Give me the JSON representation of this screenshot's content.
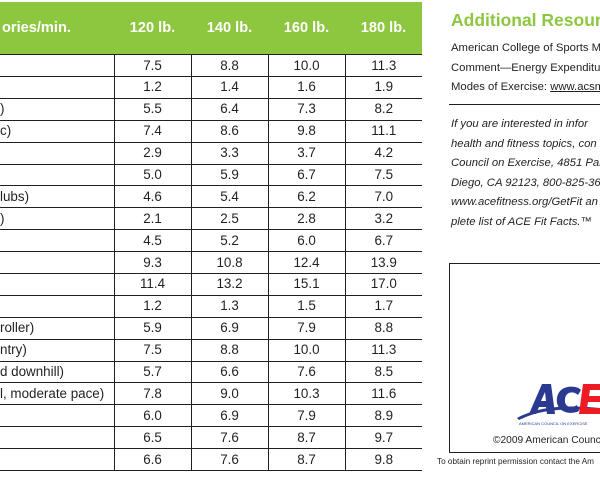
{
  "table": {
    "headers": [
      "ories/min.",
      "120 lb.",
      "140 lb.",
      "160 lb.",
      "180 lb."
    ],
    "rows": [
      {
        "activity": "",
        "values": [
          "7.5",
          "8.8",
          "10.0",
          "11.3"
        ]
      },
      {
        "activity": "",
        "values": [
          "1.2",
          "1.4",
          "1.6",
          "1.9"
        ]
      },
      {
        "activity": ")",
        "values": [
          "5.5",
          "6.4",
          "7.3",
          "8.2"
        ]
      },
      {
        "activity": "c)",
        "values": [
          "7.4",
          "8.6",
          "9.8",
          "11.1"
        ]
      },
      {
        "activity": "",
        "values": [
          "2.9",
          "3.3",
          "3.7",
          "4.2"
        ]
      },
      {
        "activity": "",
        "values": [
          "5.0",
          "5.9",
          "6.7",
          "7.5"
        ]
      },
      {
        "activity": "lubs)",
        "values": [
          "4.6",
          "5.4",
          "6.2",
          "7.0"
        ]
      },
      {
        "activity": ")",
        "values": [
          "2.1",
          "2.5",
          "2.8",
          "3.2"
        ]
      },
      {
        "activity": "",
        "values": [
          "4.5",
          "5.2",
          "6.0",
          "6.7"
        ]
      },
      {
        "activity": "",
        "values": [
          "9.3",
          "10.8",
          "12.4",
          "13.9"
        ]
      },
      {
        "activity": "",
        "values": [
          "11.4",
          "13.2",
          "15.1",
          "17.0"
        ]
      },
      {
        "activity": "",
        "values": [
          "1.2",
          "1.3",
          "1.5",
          "1.7"
        ]
      },
      {
        "activity": "roller)",
        "values": [
          "5.9",
          "6.9",
          "7.9",
          "8.8"
        ]
      },
      {
        "activity": "ntry)",
        "values": [
          "7.5",
          "8.8",
          "10.0",
          "11.3"
        ]
      },
      {
        "activity": "d downhill)",
        "values": [
          "5.7",
          "6.6",
          "7.6",
          "8.5"
        ]
      },
      {
        "activity": "l, moderate pace)",
        "values": [
          "7.8",
          "9.0",
          "10.3",
          "11.6"
        ]
      },
      {
        "activity": "",
        "values": [
          "6.0",
          "6.9",
          "7.9",
          "8.9"
        ]
      },
      {
        "activity": "",
        "values": [
          "6.5",
          "7.6",
          "8.7",
          "9.7"
        ]
      },
      {
        "activity": "",
        "values": [
          "6.6",
          "7.6",
          "8.7",
          "9.8"
        ]
      }
    ]
  },
  "resources": {
    "title": "Additional Resource",
    "line1": "American College of Sports M",
    "line2": "Comment—Energy Expenditu",
    "line3_prefix": "Modes of Exercise: ",
    "line3_link": "www.acsm"
  },
  "info": {
    "line1": "If you are interested in infor",
    "line2": "health and fitness topics, con",
    "line3": "Council on Exercise, 4851 Par",
    "line4": "Diego, CA 92123, 800-825-36",
    "line5": "www.acefitness.org/GetFit an",
    "line6": "plete list of ACE Fit Facts.™"
  },
  "logo": {
    "letters": "ACE",
    "tagline": "AMERICAN COUNCIL ON EXERCISE",
    "colors": {
      "blue": "#2b3990",
      "red": "#ed1c24"
    }
  },
  "copyright": "©2009 American Counc",
  "reprint": "To obtain reprint permission contact the Am",
  "colors": {
    "header_green": "#8dc63f",
    "title_green": "#8dc63f",
    "text": "#231f20"
  }
}
